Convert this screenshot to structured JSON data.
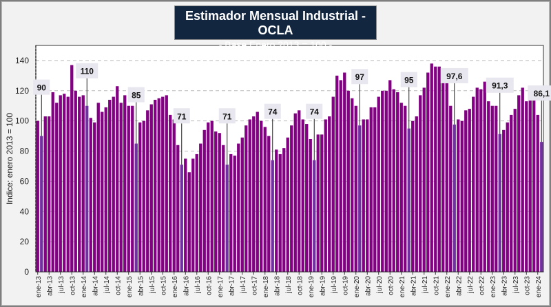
{
  "chart_data": {
    "type": "bar",
    "title": "Estimador Mensual Industrial - OCLA",
    "subtitle": "- Base Enero 2013 = 100 -",
    "xlabel": "",
    "ylabel": "Indice: enero 2013 = 100",
    "ylim": [
      0,
      150
    ],
    "yticks": [
      0,
      20,
      40,
      60,
      80,
      100,
      120,
      140
    ],
    "grid": true,
    "colors": {
      "bar": "#820082",
      "highlight": "#7030a0",
      "title_bg": "#132640"
    },
    "x_tick_labels": [
      "ene-13",
      "abr-13",
      "jul-13",
      "oct-13",
      "ene-14",
      "abr-14",
      "jul-14",
      "oct-14",
      "ene-15",
      "abr-15",
      "jul-15",
      "oct-15",
      "ene-16",
      "abr-16",
      "jul-16",
      "oct-16",
      "ene-17",
      "abr-17",
      "jul-17",
      "oct-17",
      "ene-18",
      "abr-18",
      "jul-18",
      "oct-18",
      "ene-19",
      "abr-19",
      "jul-19",
      "oct-19",
      "ene-20",
      "abr-20",
      "jul-20",
      "oct-20",
      "ene-21",
      "abr-21",
      "jul-21",
      "oct-21",
      "ene-22",
      "abr-22",
      "jul-22",
      "oct-22",
      "ene-23",
      "abr-23",
      "jul-23",
      "oct-23",
      "ene-24"
    ],
    "values": [
      100,
      90,
      103,
      103,
      119,
      112,
      117,
      118,
      116,
      137,
      120,
      116,
      117,
      110,
      102,
      99,
      112,
      106,
      109,
      114,
      116,
      123,
      112,
      117,
      110,
      110,
      85,
      99,
      100,
      107,
      111,
      114,
      115,
      116,
      117,
      104,
      101,
      84,
      71,
      75,
      66,
      75,
      78,
      85,
      94,
      99,
      100,
      93,
      92,
      84,
      71,
      78,
      77,
      85,
      89,
      97,
      101,
      103,
      106,
      100,
      96,
      90,
      74,
      81,
      78,
      82,
      89,
      97,
      105,
      107,
      101,
      98,
      88,
      74,
      91,
      91,
      101,
      103,
      116,
      130,
      127,
      132,
      120,
      115,
      110,
      97,
      101,
      101,
      109,
      109,
      116,
      120,
      120,
      127,
      121,
      119,
      112,
      110,
      95,
      100,
      103,
      117,
      122,
      132,
      138,
      136,
      136,
      129,
      125,
      110,
      97.6,
      101,
      100,
      107,
      108,
      116,
      122,
      121,
      126,
      113,
      110,
      110,
      91.3,
      94,
      99,
      104,
      108,
      117,
      122,
      113,
      118,
      115,
      104,
      86.1
    ],
    "annotations": [
      {
        "index": 1,
        "label": "90"
      },
      {
        "index": 13,
        "label": "110"
      },
      {
        "index": 26,
        "label": "85"
      },
      {
        "index": 38,
        "label": "71"
      },
      {
        "index": 50,
        "label": "71"
      },
      {
        "index": 62,
        "label": "74"
      },
      {
        "index": 73,
        "label": "74"
      },
      {
        "index": 85,
        "label": "97"
      },
      {
        "index": 98,
        "label": "95"
      },
      {
        "index": 110,
        "label": "97,6"
      },
      {
        "index": 122,
        "label": "91,3"
      },
      {
        "index": 133,
        "label": "86,1"
      }
    ]
  }
}
